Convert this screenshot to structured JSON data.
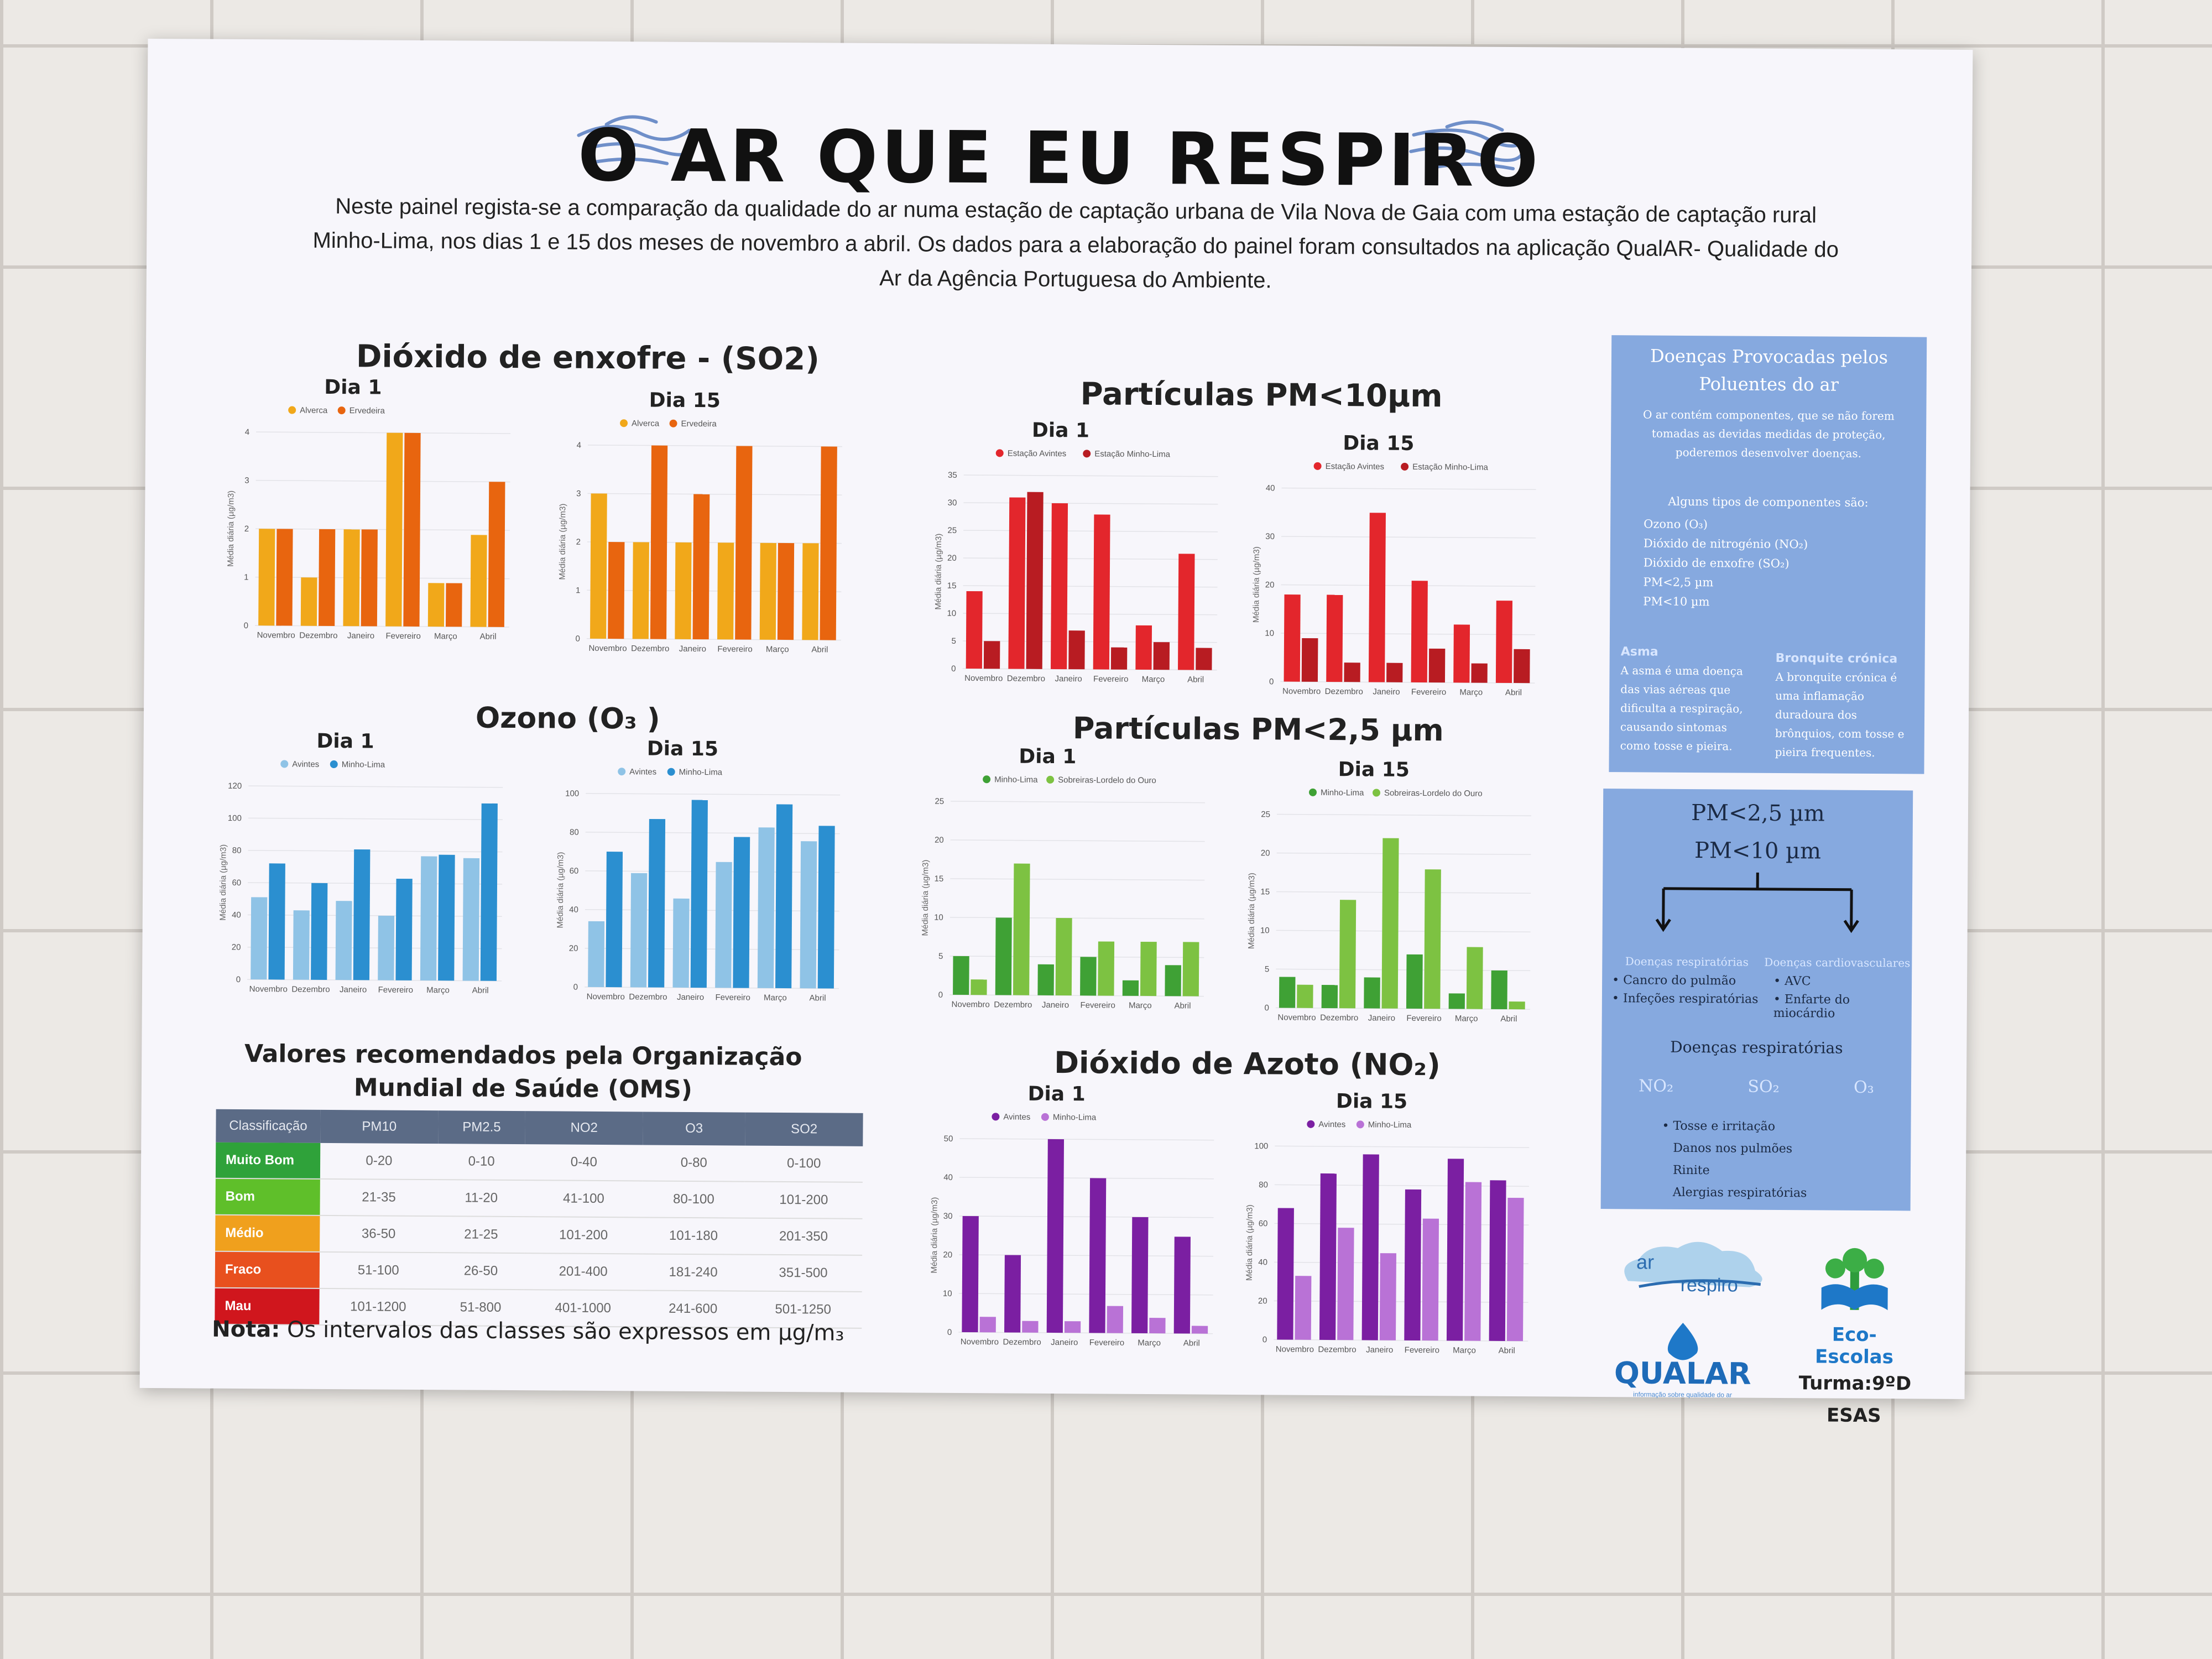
{
  "title": "O AR QUE EU RESPIRO",
  "intro": "Neste painel regista-se a comparação da qualidade do ar numa estação de captação urbana de Vila Nova de Gaia com uma estação de captação rural Minho-Lima, nos dias 1 e 15 dos meses de novembro a abril. Os dados para a elaboração do painel foram consultados na aplicação QualAR- Qualidade do Ar da Agência Portuguesa do Ambiente.",
  "sections": {
    "so2": "Dióxido de enxofre - (SO2)",
    "o3": "Ozono (O₃ )",
    "pm10": "Partículas PM<10µm",
    "pm25": "Partículas PM<2,5 µm",
    "no2": "Dióxido de Azoto (NO₂)"
  },
  "ylabel": "Média diária (µg/m3)",
  "chart_data": [
    {
      "id": "so2-d1",
      "type": "bar",
      "title": "Dia 1",
      "categories": [
        "Novembro",
        "Dezembro",
        "Janeiro",
        "Fevereiro",
        "Março",
        "Abril"
      ],
      "ylim": [
        0,
        4
      ],
      "ticks": [
        0,
        1,
        2,
        3,
        4
      ],
      "series": [
        {
          "name": "Alverca",
          "color": "#f1a81a",
          "values": [
            2.0,
            1.0,
            2.0,
            4.0,
            0.9,
            1.9
          ]
        },
        {
          "name": "Ervedeira",
          "color": "#e8650f",
          "values": [
            2.0,
            2.0,
            2.0,
            4.0,
            0.9,
            3.0
          ]
        }
      ]
    },
    {
      "id": "so2-d15",
      "type": "bar",
      "title": "Dia 15",
      "categories": [
        "Novembro",
        "Dezembro",
        "Janeiro",
        "Fevereiro",
        "Março",
        "Abril"
      ],
      "ylim": [
        0,
        4
      ],
      "ticks": [
        0,
        1,
        2,
        3,
        4
      ],
      "series": [
        {
          "name": "Alverca",
          "color": "#f1a81a",
          "values": [
            3.0,
            2.0,
            2.0,
            2.0,
            2.0,
            2.0
          ]
        },
        {
          "name": "Ervedeira",
          "color": "#e8650f",
          "values": [
            2.0,
            4.0,
            3.0,
            4.0,
            2.0,
            4.0
          ]
        }
      ]
    },
    {
      "id": "o3-d1",
      "type": "bar",
      "title": "Dia 1",
      "categories": [
        "Novembro",
        "Dezembro",
        "Janeiro",
        "Fevereiro",
        "Março",
        "Abril"
      ],
      "ylim": [
        0,
        120
      ],
      "ticks": [
        0,
        20,
        40,
        60,
        80,
        100,
        120
      ],
      "series": [
        {
          "name": "Avintes",
          "color": "#8fc3e6",
          "values": [
            51,
            43,
            49,
            40,
            77,
            76
          ]
        },
        {
          "name": "Minho-Lima",
          "color": "#2b8fd0",
          "values": [
            72,
            60,
            81,
            63,
            78,
            110
          ]
        }
      ]
    },
    {
      "id": "o3-d15",
      "type": "bar",
      "title": "Dia 15",
      "categories": [
        "Novembro",
        "Dezembro",
        "Janeiro",
        "Fevereiro",
        "Março",
        "Abril"
      ],
      "ylim": [
        0,
        100
      ],
      "ticks": [
        0,
        20,
        40,
        60,
        80,
        100
      ],
      "series": [
        {
          "name": "Avintes",
          "color": "#8fc3e6",
          "values": [
            34,
            59,
            46,
            65,
            83,
            76
          ]
        },
        {
          "name": "Minho-Lima",
          "color": "#2b8fd0",
          "values": [
            70,
            87,
            97,
            78,
            95,
            84
          ]
        }
      ]
    },
    {
      "id": "pm10-d1",
      "type": "bar",
      "title": "Dia 1",
      "categories": [
        "Novembro",
        "Dezembro",
        "Janeiro",
        "Fevereiro",
        "Março",
        "Abril"
      ],
      "ylim": [
        0,
        35
      ],
      "ticks": [
        0,
        5,
        10,
        15,
        20,
        25,
        30,
        35
      ],
      "series": [
        {
          "name": "Estação Avintes",
          "color": "#e3262c",
          "values": [
            14,
            31,
            30,
            28,
            8,
            21
          ]
        },
        {
          "name": "Estação Minho-Lima",
          "color": "#b81c22",
          "values": [
            5,
            32,
            7,
            4,
            5,
            4
          ]
        }
      ]
    },
    {
      "id": "pm10-d15",
      "type": "bar",
      "title": "Dia 15",
      "categories": [
        "Novembro",
        "Dezembro",
        "Janeiro",
        "Fevereiro",
        "Março",
        "Abril"
      ],
      "ylim": [
        0,
        40
      ],
      "ticks": [
        0,
        10,
        20,
        30,
        40
      ],
      "series": [
        {
          "name": "Estação Avintes",
          "color": "#e3262c",
          "values": [
            18,
            18,
            35,
            21,
            12,
            17
          ]
        },
        {
          "name": "Estação Minho-Lima",
          "color": "#b81c22",
          "values": [
            9,
            4,
            4,
            7,
            4,
            7
          ]
        }
      ]
    },
    {
      "id": "pm25-d1",
      "type": "bar",
      "title": "Dia 1",
      "categories": [
        "Novembro",
        "Dezembro",
        "Janeiro",
        "Fevereiro",
        "Março",
        "Abril"
      ],
      "ylim": [
        0,
        25
      ],
      "ticks": [
        0,
        5,
        10,
        15,
        20,
        25
      ],
      "series": [
        {
          "name": "Minho-Lima",
          "color": "#3fa135",
          "values": [
            5,
            10,
            4,
            5,
            2,
            4
          ]
        },
        {
          "name": "Sobreiras-Lordelo do Ouro",
          "color": "#7dc242",
          "values": [
            2,
            17,
            10,
            7,
            7,
            7
          ]
        }
      ]
    },
    {
      "id": "pm25-d15",
      "type": "bar",
      "title": "Dia 15",
      "categories": [
        "Novembro",
        "Dezembro",
        "Janeiro",
        "Fevereiro",
        "Março",
        "Abril"
      ],
      "ylim": [
        0,
        25
      ],
      "ticks": [
        0,
        5,
        10,
        15,
        20,
        25
      ],
      "series": [
        {
          "name": "Minho-Lima",
          "color": "#3fa135",
          "values": [
            4,
            3,
            4,
            7,
            2,
            5
          ]
        },
        {
          "name": "Sobreiras-Lordelo do Ouro",
          "color": "#7dc242",
          "values": [
            3,
            14,
            22,
            18,
            8,
            1
          ]
        }
      ]
    },
    {
      "id": "no2-d1",
      "type": "bar",
      "title": "Dia 1",
      "categories": [
        "Novembro",
        "Dezembro",
        "Janeiro",
        "Fevereiro",
        "Março",
        "Abril"
      ],
      "ylim": [
        0,
        50
      ],
      "ticks": [
        0,
        10,
        20,
        30,
        40,
        50
      ],
      "series": [
        {
          "name": "Avintes",
          "color": "#7b1fa2",
          "values": [
            30,
            20,
            50,
            40,
            30,
            25
          ]
        },
        {
          "name": "Minho-Lima",
          "color": "#b972d6",
          "values": [
            4,
            3,
            3,
            7,
            4,
            2
          ]
        }
      ]
    },
    {
      "id": "no2-d15",
      "type": "bar",
      "title": "Dia 15",
      "categories": [
        "Novembro",
        "Dezembro",
        "Janeiro",
        "Fevereiro",
        "Março",
        "Abril"
      ],
      "ylim": [
        0,
        100
      ],
      "ticks": [
        0,
        20,
        40,
        60,
        80,
        100
      ],
      "series": [
        {
          "name": "Avintes",
          "color": "#7b1fa2",
          "values": [
            68,
            86,
            96,
            78,
            94,
            83
          ]
        },
        {
          "name": "Minho-Lima",
          "color": "#b972d6",
          "values": [
            33,
            58,
            45,
            63,
            82,
            74
          ]
        }
      ]
    }
  ],
  "who": {
    "title": "Valores recomendados pela Organização Mundial de Saúde (OMS)",
    "headers": [
      "Classificação",
      "PM10",
      "PM2.5",
      "NO2",
      "O3",
      "SO2"
    ],
    "rows": [
      {
        "label": "Muito Bom",
        "color": "#2fa23a",
        "values": [
          "0-20",
          "0-10",
          "0-40",
          "0-80",
          "0-100"
        ]
      },
      {
        "label": "Bom",
        "color": "#5fbf2a",
        "values": [
          "21-35",
          "11-20",
          "41-100",
          "80-100",
          "101-200"
        ]
      },
      {
        "label": "Médio",
        "color": "#f0a01d",
        "values": [
          "36-50",
          "21-25",
          "101-200",
          "101-180",
          "201-350"
        ]
      },
      {
        "label": "Fraco",
        "color": "#e8501e",
        "values": [
          "51-100",
          "26-50",
          "201-400",
          "181-240",
          "351-500"
        ]
      },
      {
        "label": "Mau",
        "color": "#d0161d",
        "values": [
          "101-1200",
          "51-800",
          "401-1000",
          "241-600",
          "501-1250"
        ]
      }
    ]
  },
  "nota": {
    "label": "Nota:",
    "text": " Os intervalos das classes são expressos em µg/m₃"
  },
  "diseases": {
    "title": "Doenças Provocadas pelos Poluentes do ar",
    "intro": "O ar contém componentes, que se não forem tomadas as devidas medidas de proteção, poderemos desenvolver doenças.",
    "types_title": "Alguns tipos de componentes são:",
    "types": [
      "Ozono (O₃)",
      "Dióxido de nitrogénio (NO₂)",
      "Dióxido de enxofre (SO₂)",
      "PM<2,5 µm",
      "PM<10 µm"
    ],
    "asma_title": "Asma",
    "asma_text": "A asma é uma doença das vias aéreas que dificulta a respiração, causando sintomas como tosse e pieira.",
    "bronq_title": "Bronquite crónica",
    "bronq_text": "A bronquite crónica é uma inflamação duradoura dos brônquios, com tosse e pieira frequentes."
  },
  "pm_box": {
    "l1": "PM<2,5 µm",
    "l2": "PM<10 µm",
    "left_title": "Doenças respiratórias",
    "left_items": [
      "Cancro do pulmão",
      "Infeções respiratórias"
    ],
    "right_title": "Doenças cardiovasculares",
    "right_items": [
      "AVC",
      "Enfarte do miocárdio"
    ],
    "resp_title": "Doenças respiratórias",
    "gases": [
      "NO₂",
      "SO₂",
      "O₃"
    ],
    "effects": [
      "Tosse e irritação",
      "Danos nos pulmões",
      "Rinite",
      "Alergias respiratórias"
    ]
  },
  "logos": {
    "ar_a": "ar",
    "ar_b": "respiro",
    "qualar": "QUALAR",
    "qualar_sub": "informação sobre qualidade do ar",
    "eco": "Eco-Escolas",
    "turma": "Turma:9ºD",
    "esas": "ESAS"
  }
}
